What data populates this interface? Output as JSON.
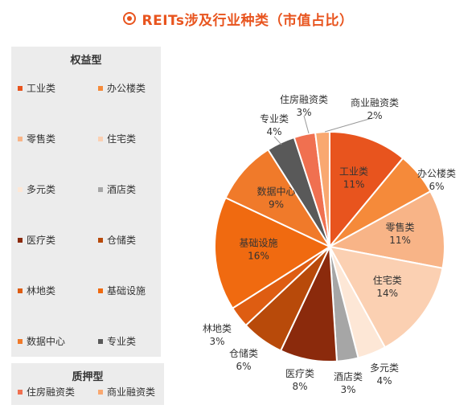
{
  "title": "REITs涉及行业种类（市值占比）",
  "legend": {
    "equity_header": "权益型",
    "mortgage_header": "质押型",
    "equity_items": [
      {
        "label": "工业类",
        "color": "#e8541e"
      },
      {
        "label": "办公楼类",
        "color": "#f58a3a"
      },
      {
        "label": "零售类",
        "color": "#f8b487"
      },
      {
        "label": "住宅类",
        "color": "#fbd0b2"
      },
      {
        "label": "多元类",
        "color": "#fde7d6"
      },
      {
        "label": "酒店类",
        "color": "#a6a6a6"
      },
      {
        "label": "医疗类",
        "color": "#8b2a0c"
      },
      {
        "label": "仓储类",
        "color": "#b84a0a"
      },
      {
        "label": "林地类",
        "color": "#de5d12"
      },
      {
        "label": "基础设施",
        "color": "#f06a10"
      },
      {
        "label": "数据中心",
        "color": "#f07a2a"
      },
      {
        "label": "专业类",
        "color": "#595959"
      }
    ],
    "mortgage_items": [
      {
        "label": "住房融资类",
        "color": "#f07050"
      },
      {
        "label": "商业融资类",
        "color": "#f9a870"
      }
    ]
  },
  "chart_data": {
    "type": "pie",
    "title": "REITs涉及行业种类（市值占比）",
    "slices": [
      {
        "label": "工业类",
        "value": 11,
        "pct": "11%",
        "color": "#e8541e",
        "inside": true
      },
      {
        "label": "办公楼类",
        "value": 6,
        "pct": "6%",
        "color": "#f58a3a",
        "inside": false
      },
      {
        "label": "零售类",
        "value": 11,
        "pct": "11%",
        "color": "#f8b487",
        "inside": true
      },
      {
        "label": "住宅类",
        "value": 14,
        "pct": "14%",
        "color": "#fbd0b2",
        "inside": true
      },
      {
        "label": "多元类",
        "value": 4,
        "pct": "4%",
        "color": "#fde7d6",
        "inside": false
      },
      {
        "label": "酒店类",
        "value": 3,
        "pct": "3%",
        "color": "#a6a6a6",
        "inside": false
      },
      {
        "label": "医疗类",
        "value": 8,
        "pct": "8%",
        "color": "#8b2a0c",
        "inside": false
      },
      {
        "label": "仓储类",
        "value": 6,
        "pct": "6%",
        "color": "#b84a0a",
        "inside": false
      },
      {
        "label": "林地类",
        "value": 3,
        "pct": "3%",
        "color": "#de5d12",
        "inside": false
      },
      {
        "label": "基础设施",
        "value": 16,
        "pct": "16%",
        "color": "#f06a10",
        "inside": true
      },
      {
        "label": "数据中心",
        "value": 9,
        "pct": "9%",
        "color": "#f07a2a",
        "inside": true
      },
      {
        "label": "专业类",
        "value": 4,
        "pct": "4%",
        "color": "#595959",
        "inside": false
      },
      {
        "label": "住房融资类",
        "value": 3,
        "pct": "3%",
        "color": "#f07050",
        "inside": false
      },
      {
        "label": "商业融资类",
        "value": 2,
        "pct": "2%",
        "color": "#f9a870",
        "inside": false
      }
    ]
  }
}
